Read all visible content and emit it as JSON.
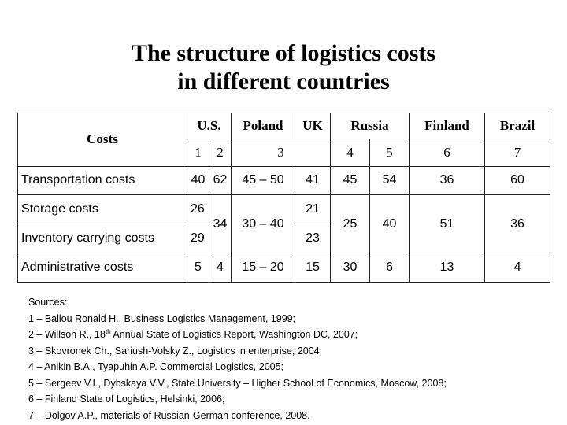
{
  "title": {
    "line1": "The structure of logistics costs",
    "line2": "in different countries"
  },
  "table": {
    "costs_header": "Costs",
    "countries": [
      "U.S.",
      "Poland",
      "UK",
      "Russia",
      "Finland",
      "Brazil"
    ],
    "source_numbers": [
      "1",
      "2",
      "3",
      "4",
      "5",
      "6",
      "7"
    ],
    "rows": {
      "transportation": {
        "label": "Transportation costs",
        "us_1": "40",
        "us_2": "62",
        "poland": "45 – 50",
        "uk": "41",
        "russia_4": "45",
        "russia_5": "54",
        "finland": "36",
        "brazil": "60"
      },
      "storage": {
        "label": "Storage costs",
        "us_1": "26",
        "uk": "21"
      },
      "storage_inventory_merged": {
        "us_2": "34",
        "poland": "30 – 40",
        "russia_4": "25",
        "russia_5": "40",
        "finland": "51",
        "brazil": "36"
      },
      "inventory": {
        "label": "Inventory carrying costs",
        "us_1": "29",
        "uk": "23"
      },
      "administrative": {
        "label": "Administrative costs",
        "us_1": "5",
        "us_2": "4",
        "poland": "15 – 20",
        "uk": "15",
        "russia_4": "30",
        "russia_5": "6",
        "finland": "13",
        "brazil": "4"
      }
    }
  },
  "sources": {
    "heading": "Sources:",
    "s1": "1 – Ballou Ronald H., Business Logistics Management, 1999;",
    "s2_pre": "2 – Willson R., 18",
    "s2_sup": "th",
    "s2_post": " Annual State of Logistics Report, Washington DC, 2007;",
    "s3": "3 – Skovronek Ch., Sariush-Volsky Z., Logistics in enterprise, 2004;",
    "s4": "4 – Anikin B.A., Tyapuhin A.P. Commercial Logistics, 2005;",
    "s5": "5 – Sergeev V.I., Dybskaya V.V., State University – Higher School of Economics, Moscow, 2008;",
    "s6": "6 – Finland State of Logistics, Helsinki, 2006;",
    "s7": "7 – Dolgov A.P., materials of Russian-German conference, 2008."
  }
}
